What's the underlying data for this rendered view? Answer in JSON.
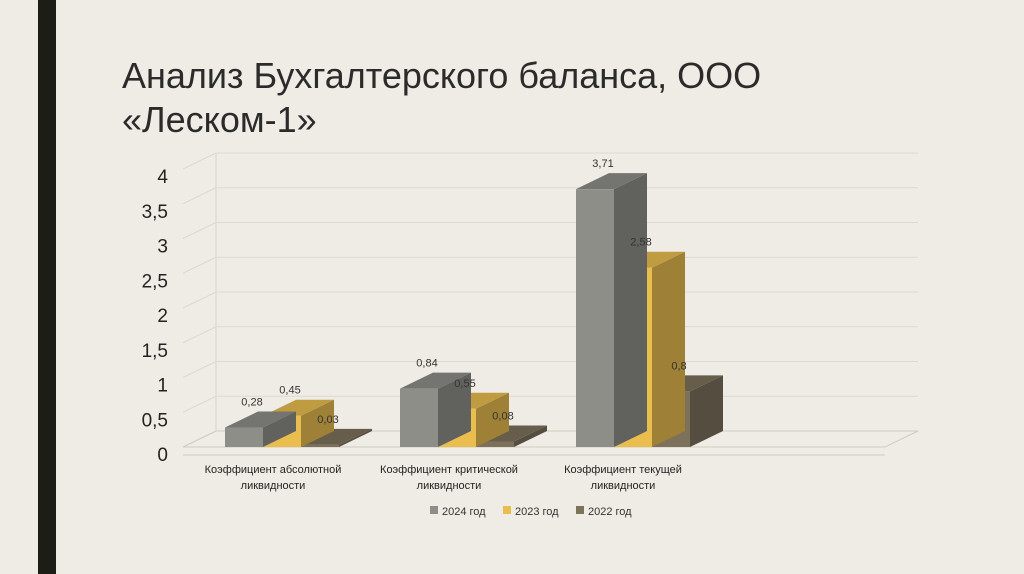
{
  "slide": {
    "title": "Анализ Бухгалтерского баланса, ООО «Леском-1»"
  },
  "chart_data": {
    "type": "bar",
    "style": "3d-clustered",
    "categories": [
      [
        "Коэффициент абсолютной",
        "ликвидности"
      ],
      [
        "Коэффициент критической",
        "ликвидности"
      ],
      [
        "Коэффициент текущей",
        "ликвидности"
      ]
    ],
    "series": [
      {
        "name": "2024 год",
        "values": [
          0.28,
          0.84,
          3.71
        ],
        "labels": [
          "0,28",
          "0,84",
          "3,71"
        ],
        "color": "#8e8e89"
      },
      {
        "name": "2023 год",
        "values": [
          0.45,
          0.55,
          2.58
        ],
        "labels": [
          "0,45",
          "0,55",
          "2,58"
        ],
        "color": "#e9be4f"
      },
      {
        "name": "2022 год",
        "values": [
          0.03,
          0.08,
          0.8
        ],
        "labels": [
          "0,03",
          "0,08",
          "0,8"
        ],
        "color": "#7d715c"
      }
    ],
    "y_ticks": [
      "0",
      "0,5",
      "1",
      "1,5",
      "2",
      "2,5",
      "3",
      "3,5",
      "4"
    ],
    "ylim": [
      0,
      4
    ],
    "grid": true,
    "legend_position": "bottom"
  }
}
